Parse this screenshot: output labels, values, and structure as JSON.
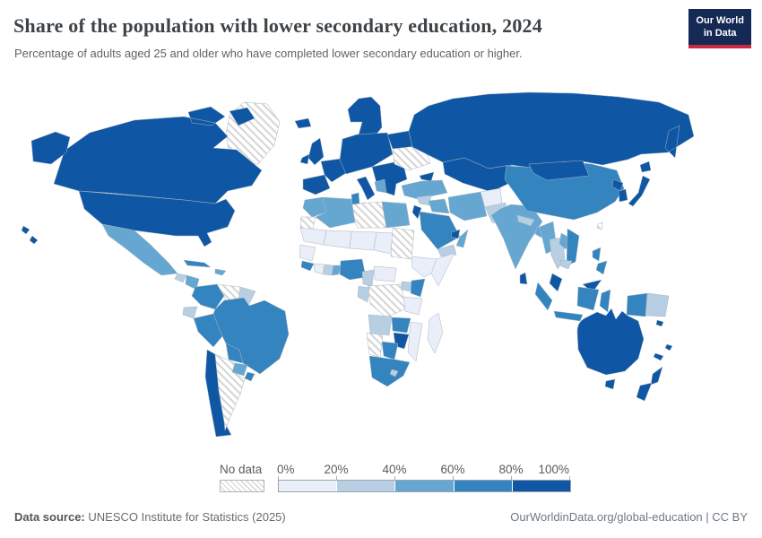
{
  "header": {
    "title": "Share of the population with lower secondary education, 2024",
    "subtitle": "Percentage of adults aged 25 and older who have completed lower secondary education or higher.",
    "logo_line1": "Our World",
    "logo_line2": "in Data",
    "logo_bg": "#142a54",
    "logo_accent": "#c92a3d"
  },
  "legend": {
    "no_data_label": "No data",
    "ticks": [
      "0%",
      "20%",
      "40%",
      "60%",
      "80%",
      "100%"
    ],
    "bins": [
      {
        "range": "0-20%",
        "color": "#e9eef8"
      },
      {
        "range": "20-40%",
        "color": "#b7cee3"
      },
      {
        "range": "40-60%",
        "color": "#66a7d2"
      },
      {
        "range": "60-80%",
        "color": "#3484bf"
      },
      {
        "range": "80-100%",
        "color": "#0f57a5"
      }
    ]
  },
  "footer": {
    "source_label": "Data source:",
    "source_text": "UNESCO Institute for Statistics (2025)",
    "credit": "OurWorldinData.org/global-education | CC BY"
  },
  "chart_data": {
    "type": "heatmap",
    "subtype": "world-choropleth",
    "title": "Share of the population with lower secondary education, 2024",
    "unit": "% of adults aged 25+ with lower secondary education or higher",
    "year": "2024",
    "legend_position": "bottom",
    "bin_ranges": [
      "0-20%",
      "20-40%",
      "40-60%",
      "60-80%",
      "80-100%",
      "No data"
    ],
    "bin_colors": {
      "0-20%": "#e9eef8",
      "20-40%": "#b7cee3",
      "40-60%": "#66a7d2",
      "60-80%": "#3484bf",
      "80-100%": "#0f57a5"
    },
    "no_data_style": "diagonal-hatch",
    "regions": [
      {
        "id": "greenland",
        "name": "Greenland",
        "bin": "No data"
      },
      {
        "id": "canada",
        "name": "Canada",
        "bin": "80-100%"
      },
      {
        "id": "usa",
        "name": "United States",
        "bin": "80-100%"
      },
      {
        "id": "mexico",
        "name": "Mexico",
        "bin": "40-60%"
      },
      {
        "id": "guatemala",
        "name": "Guatemala",
        "bin": "20-40%"
      },
      {
        "id": "honduras-nicaragua",
        "name": "Honduras & Nicaragua",
        "bin": "40-60%"
      },
      {
        "id": "costarica-panama",
        "name": "Costa Rica & Panama",
        "bin": "60-80%"
      },
      {
        "id": "cuba",
        "name": "Cuba",
        "bin": "60-80%"
      },
      {
        "id": "hispaniola",
        "name": "Haiti & Dominican Republic",
        "bin": "40-60%"
      },
      {
        "id": "colombia",
        "name": "Colombia",
        "bin": "60-80%"
      },
      {
        "id": "venezuela",
        "name": "Venezuela",
        "bin": "No data"
      },
      {
        "id": "guyanas",
        "name": "Guyana & Suriname",
        "bin": "20-40%"
      },
      {
        "id": "ecuador",
        "name": "Ecuador",
        "bin": "20-40%"
      },
      {
        "id": "peru",
        "name": "Peru",
        "bin": "60-80%"
      },
      {
        "id": "brazil",
        "name": "Brazil",
        "bin": "60-80%"
      },
      {
        "id": "bolivia",
        "name": "Bolivia",
        "bin": "60-80%"
      },
      {
        "id": "paraguay",
        "name": "Paraguay",
        "bin": "40-60%"
      },
      {
        "id": "uruguay",
        "name": "Uruguay",
        "bin": "60-80%"
      },
      {
        "id": "chile",
        "name": "Chile",
        "bin": "80-100%"
      },
      {
        "id": "argentina",
        "name": "Argentina",
        "bin": "No data"
      },
      {
        "id": "iceland",
        "name": "Iceland",
        "bin": "80-100%"
      },
      {
        "id": "uk",
        "name": "United Kingdom",
        "bin": "80-100%"
      },
      {
        "id": "ireland",
        "name": "Ireland",
        "bin": "80-100%"
      },
      {
        "id": "scandinavia",
        "name": "Norway, Sweden & Finland",
        "bin": "80-100%"
      },
      {
        "id": "iberia",
        "name": "Spain & Portugal",
        "bin": "80-100%"
      },
      {
        "id": "france",
        "name": "France",
        "bin": "80-100%"
      },
      {
        "id": "central-europe",
        "name": "Central Europe (Germany, Poland...)",
        "bin": "80-100%"
      },
      {
        "id": "italy",
        "name": "Italy",
        "bin": "80-100%"
      },
      {
        "id": "balkans",
        "name": "Southeast Europe (Romania, Serbia, Greece...)",
        "bin": "80-100%"
      },
      {
        "id": "bosnia-albania",
        "name": "Bosnia & Albania",
        "bin": "40-60%"
      },
      {
        "id": "baltics-belarus",
        "name": "Baltics & Belarus",
        "bin": "80-100%"
      },
      {
        "id": "ukraine",
        "name": "Ukraine",
        "bin": "No data"
      },
      {
        "id": "turkey",
        "name": "Turkey",
        "bin": "40-60%"
      },
      {
        "id": "russia",
        "name": "Russia",
        "bin": "80-100%"
      },
      {
        "id": "centralasia",
        "name": "Kazakhstan & Central Asia",
        "bin": "80-100%"
      },
      {
        "id": "caucasus",
        "name": "Caucasus",
        "bin": "80-100%"
      },
      {
        "id": "syria",
        "name": "Syria",
        "bin": "20-40%"
      },
      {
        "id": "iraq",
        "name": "Iraq",
        "bin": "40-60%"
      },
      {
        "id": "iran",
        "name": "Iran",
        "bin": "40-60%"
      },
      {
        "id": "israel-jordan",
        "name": "Israel & Jordan",
        "bin": "80-100%"
      },
      {
        "id": "saudi",
        "name": "Saudi Arabia",
        "bin": "60-80%"
      },
      {
        "id": "yemen",
        "name": "Yemen",
        "bin": "20-40%"
      },
      {
        "id": "oman",
        "name": "Oman",
        "bin": "40-60%"
      },
      {
        "id": "uae-qatar",
        "name": "United Arab Emirates & Qatar",
        "bin": "80-100%"
      },
      {
        "id": "morocco",
        "name": "Morocco",
        "bin": "40-60%"
      },
      {
        "id": "wsahara",
        "name": "Western Sahara",
        "bin": "No data"
      },
      {
        "id": "algeria",
        "name": "Algeria",
        "bin": "40-60%"
      },
      {
        "id": "tunisia",
        "name": "Tunisia",
        "bin": "60-80%"
      },
      {
        "id": "libya",
        "name": "Libya",
        "bin": "No data"
      },
      {
        "id": "egypt",
        "name": "Egypt",
        "bin": "40-60%"
      },
      {
        "id": "mauritania",
        "name": "Mauritania",
        "bin": "0-20%"
      },
      {
        "id": "mali",
        "name": "Mali",
        "bin": "0-20%"
      },
      {
        "id": "niger",
        "name": "Niger",
        "bin": "0-20%"
      },
      {
        "id": "chad",
        "name": "Chad",
        "bin": "0-20%"
      },
      {
        "id": "sudan",
        "name": "Sudan",
        "bin": "No data"
      },
      {
        "id": "ethiopia",
        "name": "Ethiopia",
        "bin": "0-20%"
      },
      {
        "id": "somalia",
        "name": "Somalia",
        "bin": "0-20%"
      },
      {
        "id": "senegal-guinea",
        "name": "Senegal & Guinea",
        "bin": "0-20%"
      },
      {
        "id": "sierraleone-liberia",
        "name": "Sierra Leone & Liberia",
        "bin": "60-80%"
      },
      {
        "id": "ivorycoast",
        "name": "Cote d'Ivoire",
        "bin": "0-20%"
      },
      {
        "id": "ghana",
        "name": "Ghana",
        "bin": "20-40%"
      },
      {
        "id": "togo-benin",
        "name": "Togo & Benin",
        "bin": "40-60%"
      },
      {
        "id": "nigeria",
        "name": "Nigeria",
        "bin": "60-80%"
      },
      {
        "id": "cameroon",
        "name": "Cameroon",
        "bin": "20-40%"
      },
      {
        "id": "car",
        "name": "Central African Republic",
        "bin": "0-20%"
      },
      {
        "id": "drc",
        "name": "Democratic Republic of Congo",
        "bin": "No data"
      },
      {
        "id": "gabon-congo",
        "name": "Gabon & Congo",
        "bin": "20-40%"
      },
      {
        "id": "uganda",
        "name": "Uganda",
        "bin": "20-40%"
      },
      {
        "id": "kenya",
        "name": "Kenya",
        "bin": "60-80%"
      },
      {
        "id": "tanzania",
        "name": "Tanzania",
        "bin": "0-20%"
      },
      {
        "id": "angola",
        "name": "Angola",
        "bin": "20-40%"
      },
      {
        "id": "zambia",
        "name": "Zambia",
        "bin": "60-80%"
      },
      {
        "id": "mozambique",
        "name": "Mozambique",
        "bin": "0-20%"
      },
      {
        "id": "zimbabwe",
        "name": "Zimbabwe",
        "bin": "80-100%"
      },
      {
        "id": "botswana",
        "name": "Botswana",
        "bin": "60-80%"
      },
      {
        "id": "namibia",
        "name": "Namibia",
        "bin": "No data"
      },
      {
        "id": "southafrica",
        "name": "South Africa",
        "bin": "60-80%"
      },
      {
        "id": "lesotho",
        "name": "Lesotho",
        "bin": "20-40%"
      },
      {
        "id": "madagascar",
        "name": "Madagascar",
        "bin": "0-20%"
      },
      {
        "id": "afghanistan",
        "name": "Afghanistan",
        "bin": "0-20%"
      },
      {
        "id": "pakistan",
        "name": "Pakistan",
        "bin": "20-40%"
      },
      {
        "id": "india",
        "name": "India",
        "bin": "40-60%"
      },
      {
        "id": "nepal",
        "name": "Nepal",
        "bin": "20-40%"
      },
      {
        "id": "bangladesh",
        "name": "Bangladesh",
        "bin": "40-60%"
      },
      {
        "id": "srilanka",
        "name": "Sri Lanka",
        "bin": "80-100%"
      },
      {
        "id": "china",
        "name": "China",
        "bin": "60-80%"
      },
      {
        "id": "mongolia",
        "name": "Mongolia",
        "bin": "80-100%"
      },
      {
        "id": "myanmar",
        "name": "Myanmar",
        "bin": "40-60%"
      },
      {
        "id": "thailand",
        "name": "Thailand",
        "bin": "20-40%"
      },
      {
        "id": "laos",
        "name": "Laos",
        "bin": "40-60%"
      },
      {
        "id": "vietnam",
        "name": "Vietnam",
        "bin": "60-80%"
      },
      {
        "id": "cambodia",
        "name": "Cambodia",
        "bin": "20-40%"
      },
      {
        "id": "malaysia",
        "name": "Malaysia",
        "bin": "80-100%"
      },
      {
        "id": "indonesia",
        "name": "Indonesia",
        "bin": "60-80%"
      },
      {
        "id": "png",
        "name": "Papua New Guinea",
        "bin": "20-40%"
      },
      {
        "id": "philippines",
        "name": "Philippines",
        "bin": "60-80%"
      },
      {
        "id": "japan",
        "name": "Japan",
        "bin": "80-100%"
      },
      {
        "id": "skorea",
        "name": "South Korea",
        "bin": "80-100%"
      },
      {
        "id": "nkorea",
        "name": "North Korea",
        "bin": "80-100%"
      },
      {
        "id": "taiwan",
        "name": "Taiwan",
        "bin": "No data"
      },
      {
        "id": "australia",
        "name": "Australia",
        "bin": "80-100%"
      },
      {
        "id": "newzealand",
        "name": "New Zealand",
        "bin": "80-100%"
      },
      {
        "id": "pacific",
        "name": "Pacific Islands (Solomon Is., Fiji, New Caledonia)",
        "bin": "80-100%"
      }
    ]
  }
}
